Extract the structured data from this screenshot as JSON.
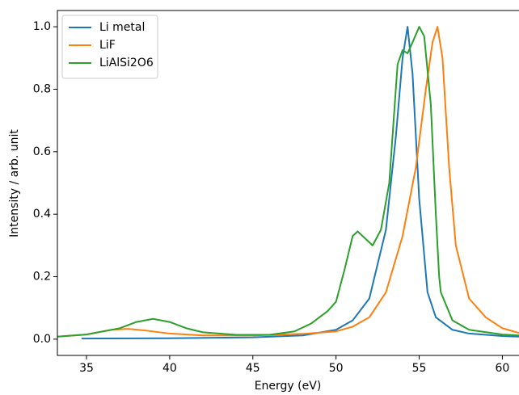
{
  "chart_data": {
    "type": "line",
    "xlabel": "Energy (eV)",
    "ylabel": "Intensity / arb. unit",
    "xlim": [
      33.25,
      61
    ],
    "ylim": [
      -0.052,
      1.052
    ],
    "xticks": [
      35,
      40,
      45,
      50,
      55,
      60
    ],
    "yticks": [
      {
        "value": 0,
        "label": "0.0"
      },
      0.2,
      0.4,
      0.6,
      0.8,
      {
        "value": 1,
        "label": "1.0"
      }
    ],
    "legend": "upper-left",
    "series": [
      {
        "name": "Li metal",
        "color": "#1f77b4",
        "x": [
          34.7,
          40,
          45,
          48,
          50,
          51,
          52,
          53,
          53.6,
          54.0,
          54.3,
          54.6,
          55.0,
          55.5,
          56,
          57,
          58,
          60,
          61
        ],
        "values": [
          0.002,
          0.003,
          0.006,
          0.012,
          0.03,
          0.06,
          0.13,
          0.35,
          0.65,
          0.9,
          1.0,
          0.85,
          0.45,
          0.15,
          0.07,
          0.03,
          0.018,
          0.01,
          0.008
        ]
      },
      {
        "name": "LiF",
        "color": "#ff7f0e",
        "x": [
          33.25,
          35,
          36.5,
          37.5,
          38.5,
          40,
          42,
          45,
          48,
          50,
          51,
          52,
          53,
          54,
          54.8,
          55.4,
          55.8,
          56.1,
          56.4,
          56.8,
          57.2,
          58,
          59,
          60,
          61
        ],
        "values": [
          0.008,
          0.015,
          0.03,
          0.033,
          0.028,
          0.018,
          0.012,
          0.012,
          0.017,
          0.025,
          0.04,
          0.07,
          0.15,
          0.33,
          0.55,
          0.8,
          0.95,
          1.0,
          0.9,
          0.55,
          0.3,
          0.13,
          0.07,
          0.035,
          0.02
        ]
      },
      {
        "name": "LiAlSi2O6",
        "color": "#2ca02c",
        "x": [
          33.25,
          35,
          37,
          38,
          39,
          40,
          41,
          42,
          44,
          46,
          47.5,
          48.5,
          49.5,
          50,
          50.5,
          51,
          51.3,
          51.8,
          52.2,
          52.7,
          53.2,
          53.7,
          54,
          54.3,
          54.6,
          55,
          55.3,
          55.7,
          56,
          56.2,
          56.3,
          57,
          58,
          60,
          61
        ],
        "values": [
          0.008,
          0.015,
          0.035,
          0.055,
          0.065,
          0.055,
          0.035,
          0.022,
          0.014,
          0.014,
          0.025,
          0.05,
          0.09,
          0.12,
          0.22,
          0.33,
          0.345,
          0.32,
          0.3,
          0.35,
          0.5,
          0.88,
          0.925,
          0.915,
          0.95,
          1.0,
          0.97,
          0.75,
          0.4,
          0.2,
          0.15,
          0.06,
          0.03,
          0.015,
          0.012
        ]
      }
    ]
  }
}
